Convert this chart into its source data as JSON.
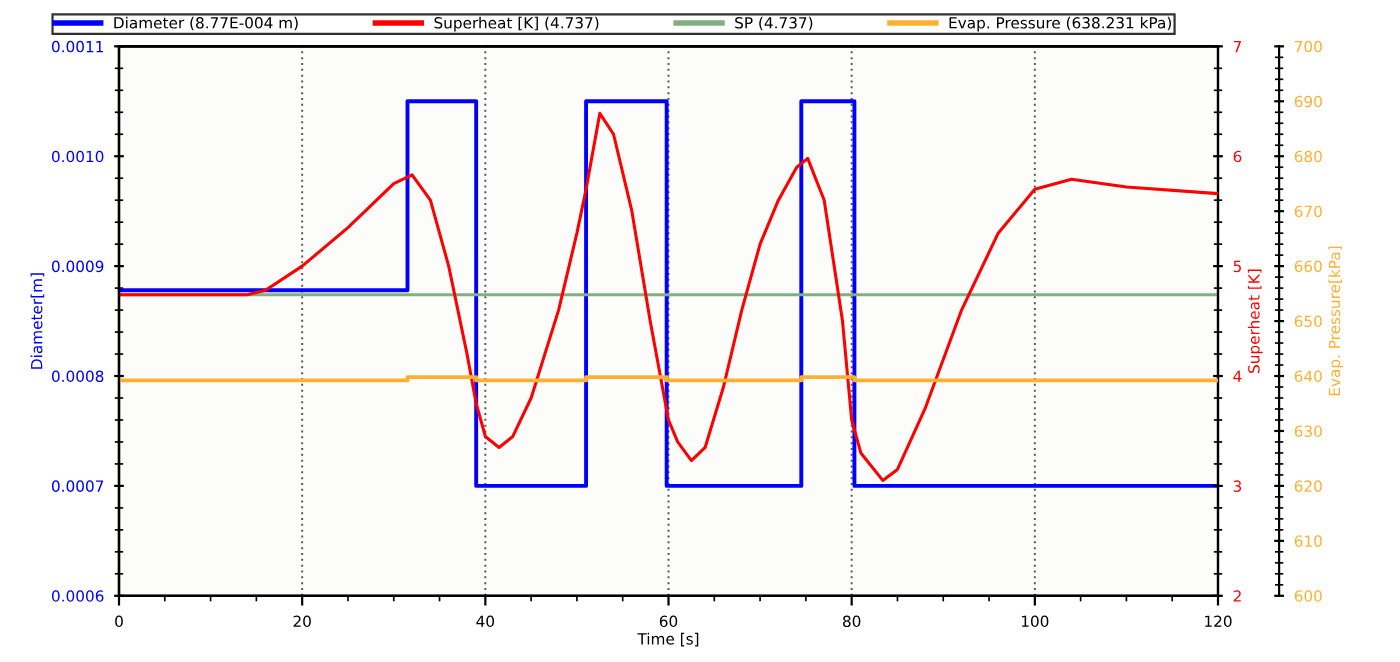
{
  "chart_data": {
    "type": "line",
    "xlabel": "Time [s]",
    "ylabel": "Diameter[m]",
    "y2label": "Superheat [K]",
    "y3label": "Evap. Pressure[kPa]",
    "xlim": [
      0,
      120
    ],
    "xticks": [
      0,
      20,
      40,
      60,
      80,
      100,
      120
    ],
    "ylim": [
      0.0006,
      0.0011
    ],
    "yticks": [
      {
        "value": 0.0006,
        "label": "0.0006"
      },
      {
        "value": 0.0007,
        "label": "0.0007"
      },
      {
        "value": 0.0008,
        "label": "0.0008"
      },
      {
        "value": 0.0009,
        "label": "0.0009"
      },
      {
        "value": 0.001,
        "label": "0.0010"
      },
      {
        "value": 0.0011,
        "label": "0.0011"
      }
    ],
    "y2lim": [
      2,
      7
    ],
    "y2ticks": [
      2,
      3,
      4,
      5,
      6,
      7
    ],
    "y3lim": [
      600,
      700
    ],
    "y3ticks": [
      600,
      610,
      620,
      630,
      640,
      650,
      660,
      670,
      680,
      690,
      700
    ],
    "grid": "x",
    "legend": "top",
    "series": [
      {
        "name": "Diameter (8.77E-004 m)",
        "color": "#0000ff",
        "type": "step",
        "axis": "y",
        "x": [
          0,
          31.5,
          39,
          51,
          59.8,
          74.5,
          80.3,
          120
        ],
        "values": [
          0.000878,
          0.00105,
          0.0007,
          0.00105,
          0.0007,
          0.00105,
          0.0007,
          0.0007
        ]
      },
      {
        "name": "Superheat [K] (4.737)",
        "color": "#ff0000",
        "axis": "y2",
        "x": [
          0,
          14,
          16,
          20,
          25,
          30,
          32,
          34,
          36,
          38,
          39,
          40,
          41.5,
          43,
          45,
          48,
          50,
          51,
          52.5,
          54,
          56,
          58,
          60,
          61,
          62.5,
          64,
          66,
          68,
          70,
          72,
          74,
          75.2,
          77,
          79,
          80,
          81,
          83.4,
          85,
          88,
          92,
          96,
          100,
          104,
          110,
          120
        ],
        "values": [
          4.74,
          4.74,
          4.78,
          5.0,
          5.35,
          5.75,
          5.83,
          5.6,
          5.0,
          4.2,
          3.75,
          3.45,
          3.35,
          3.45,
          3.8,
          4.6,
          5.3,
          5.7,
          6.39,
          6.2,
          5.5,
          4.5,
          3.6,
          3.4,
          3.23,
          3.35,
          3.9,
          4.6,
          5.2,
          5.6,
          5.9,
          5.98,
          5.6,
          4.5,
          3.6,
          3.3,
          3.05,
          3.15,
          3.7,
          4.6,
          5.3,
          5.7,
          5.79,
          5.72,
          5.66
        ]
      },
      {
        "name": "SP (4.737)",
        "color": "#80b080",
        "axis": "y2",
        "x": [
          0,
          120
        ],
        "values": [
          4.74,
          4.74
        ]
      },
      {
        "name": "Evap. Pressure (638.231 kPa)",
        "color": "#ffb030",
        "type": "step",
        "axis": "y3",
        "x": [
          0,
          31.5,
          39,
          51,
          59.8,
          74.5,
          80.3,
          120
        ],
        "values": [
          639.2,
          639.8,
          639.2,
          639.8,
          639.2,
          639.8,
          639.2,
          639.2
        ]
      }
    ]
  }
}
